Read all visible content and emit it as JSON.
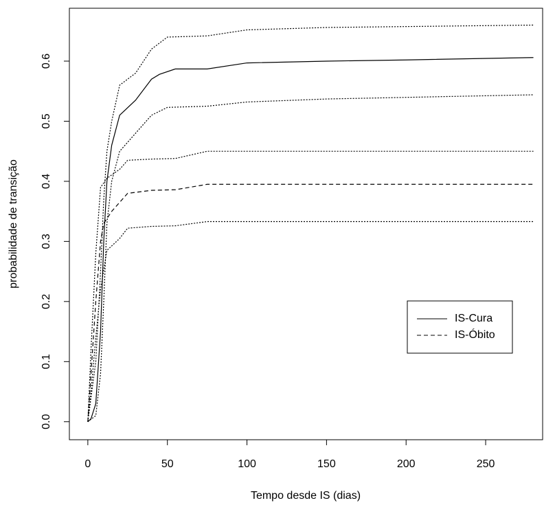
{
  "chart_data": {
    "type": "line",
    "xlabel": "Tempo desde IS (dias)",
    "ylabel": "probabilidade de transição",
    "xlim": [
      -11.6,
      285.8
    ],
    "ylim": [
      -0.03,
      0.688
    ],
    "xticks": [
      0,
      50,
      100,
      150,
      200,
      250
    ],
    "yticks": [
      {
        "value": 0,
        "label": "0.0"
      },
      {
        "value": 0.1,
        "label": "0.1"
      },
      {
        "value": 0.2,
        "label": "0.2"
      },
      {
        "value": 0.3,
        "label": "0.3"
      },
      {
        "value": 0.4,
        "label": "0.4"
      },
      {
        "value": 0.5,
        "label": "0.5"
      },
      {
        "value": 0.6,
        "label": "0.6"
      }
    ],
    "legend": "right",
    "series": [
      {
        "name": "IS-Cura",
        "color": "#000000",
        "dash": "solid",
        "x": [
          0,
          2,
          5,
          8,
          10,
          12,
          15,
          20,
          30,
          40,
          45,
          55,
          75,
          100,
          150,
          200,
          280
        ],
        "values": [
          0,
          0.005,
          0.03,
          0.15,
          0.3,
          0.4,
          0.46,
          0.51,
          0.535,
          0.57,
          0.578,
          0.587,
          0.587,
          0.597,
          0.6,
          0.602,
          0.606
        ]
      },
      {
        "name": "IS-Óbito",
        "color": "#000000",
        "dash": "dashed",
        "x": [
          0,
          2,
          5,
          8,
          10,
          15,
          20,
          25,
          40,
          55,
          75,
          280
        ],
        "values": [
          0,
          0.08,
          0.2,
          0.3,
          0.33,
          0.35,
          0.365,
          0.38,
          0.385,
          0.386,
          0.395,
          0.395
        ]
      },
      {
        "color": "#000000",
        "dash": "dotted",
        "x": [
          0,
          5,
          8,
          10,
          12,
          15,
          20,
          30,
          40,
          50,
          75,
          100,
          150,
          280
        ],
        "values": [
          0,
          0.1,
          0.25,
          0.37,
          0.45,
          0.5,
          0.56,
          0.58,
          0.62,
          0.64,
          0.642,
          0.652,
          0.656,
          0.66
        ]
      },
      {
        "color": "#000000",
        "dash": "dotted",
        "x": [
          0,
          5,
          8,
          10,
          12,
          15,
          20,
          30,
          40,
          50,
          75,
          100,
          150,
          280
        ],
        "values": [
          0,
          0.01,
          0.08,
          0.2,
          0.33,
          0.4,
          0.45,
          0.48,
          0.51,
          0.523,
          0.525,
          0.532,
          0.537,
          0.544
        ]
      },
      {
        "color": "#000000",
        "dash": "dotted",
        "x": [
          0,
          2,
          5,
          8,
          12,
          20,
          25,
          40,
          55,
          75,
          280
        ],
        "values": [
          0,
          0.12,
          0.28,
          0.39,
          0.405,
          0.42,
          0.435,
          0.437,
          0.438,
          0.45,
          0.45
        ]
      },
      {
        "color": "#000000",
        "dash": "dotted",
        "x": [
          0,
          2,
          5,
          8,
          12,
          20,
          25,
          40,
          55,
          75,
          280
        ],
        "values": [
          0,
          0.05,
          0.14,
          0.22,
          0.285,
          0.305,
          0.322,
          0.325,
          0.326,
          0.333,
          0.333
        ]
      }
    ]
  }
}
